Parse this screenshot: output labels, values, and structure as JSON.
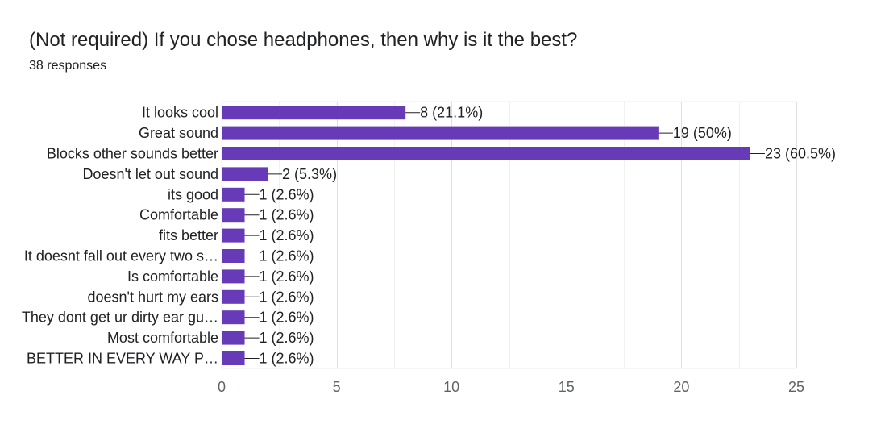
{
  "title": "(Not required) If you chose headphones, then why is it the best?",
  "subtitle": "38 responses",
  "chart_data": {
    "type": "bar",
    "orientation": "horizontal",
    "categories": [
      "It looks cool",
      "Great sound",
      "Blocks other sounds better",
      "Doesn't let out sound",
      "its good",
      "Comfortable",
      "fits better",
      "It doesnt fall out every two s…",
      "Is comfortable",
      "doesn't hurt my ears",
      "They dont get ur dirty ear gu…",
      "Most comfortable",
      "BETTER IN EVERY WAY P…"
    ],
    "values": [
      8,
      19,
      23,
      2,
      1,
      1,
      1,
      1,
      1,
      1,
      1,
      1,
      1
    ],
    "data_labels": [
      "8 (21.1%)",
      "19 (50%)",
      "23 (60.5%)",
      "2 (5.3%)",
      "1 (2.6%)",
      "1 (2.6%)",
      "1 (2.6%)",
      "1 (2.6%)",
      "1 (2.6%)",
      "1 (2.6%)",
      "1 (2.6%)",
      "1 (2.6%)",
      "1 (2.6%)"
    ],
    "xlim": [
      0,
      25
    ],
    "xticks": [
      0,
      5,
      10,
      15,
      20,
      25
    ],
    "xtick_labels": [
      "0",
      "5",
      "10",
      "15",
      "20",
      "25"
    ],
    "grid": true,
    "bar_color": "#673ab7"
  }
}
